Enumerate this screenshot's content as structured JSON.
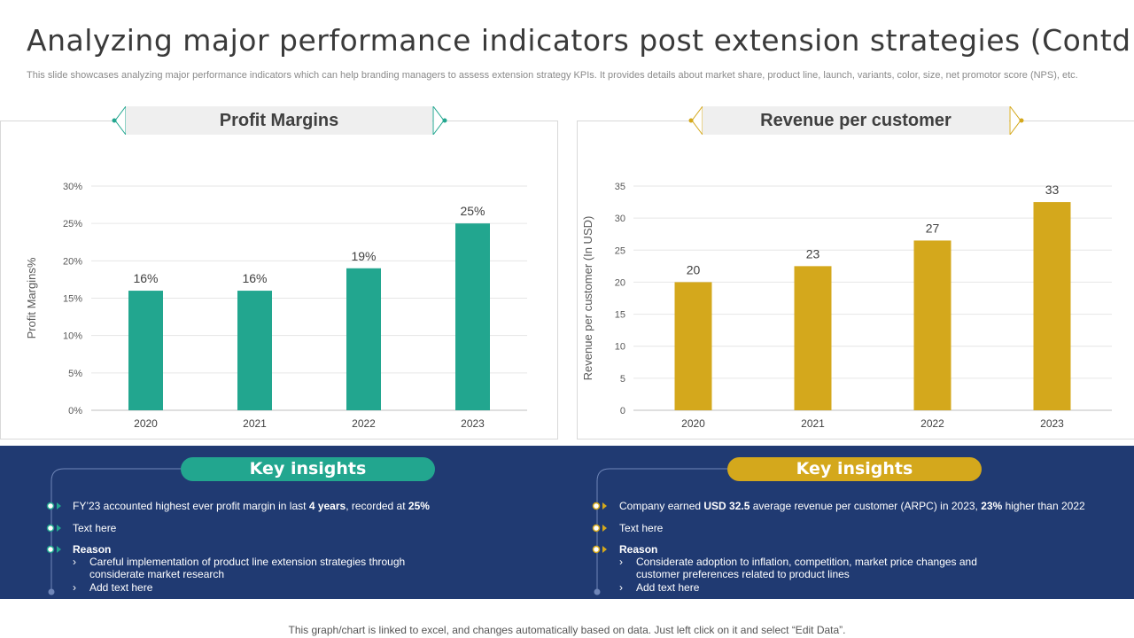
{
  "title": "Analyzing major performance indicators post extension strategies (Contd.)",
  "subtitle": "This slide showcases analyzing major performance indicators which can help branding managers to assess extension strategy KPIs. It provides details about market share, product line, launch, variants, color, size, net promotor score (NPS), etc.",
  "colors": {
    "teal": "#22a68f",
    "gold": "#d4a81c",
    "navy": "#203a72"
  },
  "chart_data": [
    {
      "type": "bar",
      "title": "Profit Margins",
      "categories": [
        "2020",
        "2021",
        "2022",
        "2023"
      ],
      "values": [
        16,
        16,
        19,
        25
      ],
      "data_labels": [
        "16%",
        "16%",
        "19%",
        "25%"
      ],
      "ylabel": "Profit Margins%",
      "xlabel": "",
      "ylim": [
        0,
        30
      ],
      "yticks": [
        0,
        5,
        10,
        15,
        20,
        25,
        30
      ],
      "ytick_labels": [
        "0%",
        "5%",
        "10%",
        "15%",
        "20%",
        "25%",
        "30%"
      ],
      "grid": true,
      "color": "#22a68f"
    },
    {
      "type": "bar",
      "title": "Revenue per customer",
      "categories": [
        "2020",
        "2021",
        "2022",
        "2023"
      ],
      "values": [
        20,
        22.5,
        26.5,
        32.5
      ],
      "data_labels": [
        "20",
        "23",
        "27",
        "33"
      ],
      "ylabel": "Revenue per customer (In USD)",
      "xlabel": "",
      "ylim": [
        0,
        35
      ],
      "yticks": [
        0,
        5,
        10,
        15,
        20,
        25,
        30,
        35
      ],
      "ytick_labels": [
        "0",
        "5",
        "10",
        "15",
        "20",
        "25",
        "30",
        "35"
      ],
      "grid": true,
      "color": "#d4a81c"
    }
  ],
  "insights_left": {
    "heading": "Key insights",
    "line1_a": "FY’23 accounted highest ever profit margin in last ",
    "line1_b": "4 years",
    "line1_c": ", recorded at ",
    "line1_d": "25%",
    "line2": "Text here",
    "reason_label": "Reason",
    "sub1": "Careful implementation of product line extension strategies through considerate market research",
    "sub2": "Add text here"
  },
  "insights_right": {
    "heading": "Key insights",
    "line1_a": "Company earned ",
    "line1_b": "USD 32.5",
    "line1_c": " average revenue per customer (ARPC) in 2023, ",
    "line1_d": "23%",
    "line1_e": " higher than 2022",
    "line2": "Text here",
    "reason_label": "Reason",
    "sub1": "Considerate adoption to inflation, competition, market price changes and customer preferences related to product lines",
    "sub2": "Add text here"
  },
  "footer": "This graph/chart is linked to excel,  and changes automatically based on data. Just left click on it and select “Edit Data”."
}
